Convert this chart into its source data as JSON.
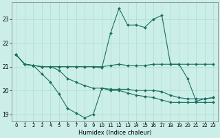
{
  "title": "",
  "xlabel": "Humidex (Indice chaleur)",
  "bg_color": "#cceee8",
  "grid_color": "#aaddcc",
  "line_color": "#1a6e60",
  "xlim": [
    -0.5,
    23.5
  ],
  "ylim": [
    18.7,
    23.7
  ],
  "xticks": [
    0,
    1,
    2,
    3,
    4,
    5,
    6,
    7,
    8,
    9,
    10,
    11,
    12,
    13,
    14,
    15,
    16,
    17,
    18,
    19,
    20,
    21,
    22,
    23
  ],
  "yticks": [
    19,
    20,
    21,
    22,
    23
  ],
  "line1_x": [
    0,
    1,
    2,
    3,
    4,
    5,
    6,
    7,
    8,
    9,
    10,
    11,
    12,
    13,
    14,
    15,
    16,
    17,
    18,
    19,
    20,
    21,
    22,
    23
  ],
  "line1_y": [
    21.5,
    21.1,
    21.05,
    21.0,
    21.0,
    21.0,
    21.0,
    21.0,
    21.0,
    21.0,
    21.0,
    21.05,
    21.1,
    21.05,
    21.05,
    21.05,
    21.1,
    21.1,
    21.1,
    21.1,
    21.1,
    21.1,
    21.1,
    21.1
  ],
  "line2_x": [
    0,
    1,
    2,
    3,
    4,
    5,
    6,
    7,
    8,
    9,
    10,
    11,
    12,
    13,
    14,
    15,
    16,
    17,
    18,
    19,
    20,
    21,
    22,
    23
  ],
  "line2_y": [
    21.5,
    21.1,
    21.05,
    20.7,
    20.35,
    19.85,
    19.25,
    19.05,
    18.85,
    19.0,
    20.1,
    20.05,
    20.05,
    20.05,
    20.0,
    20.0,
    20.0,
    19.95,
    19.8,
    19.7,
    19.65,
    19.65,
    19.65,
    19.7
  ],
  "line3_x": [
    0,
    1,
    2,
    3,
    4,
    5,
    6,
    7,
    8,
    9,
    10,
    11,
    12,
    13,
    14,
    15,
    16,
    17,
    18,
    19,
    20,
    21,
    22,
    23
  ],
  "line3_y": [
    21.5,
    21.1,
    21.05,
    21.0,
    21.0,
    20.85,
    20.5,
    20.35,
    20.2,
    20.1,
    20.1,
    20.0,
    20.0,
    19.9,
    19.8,
    19.75,
    19.7,
    19.6,
    19.5,
    19.5,
    19.5,
    19.5,
    19.5,
    19.5
  ],
  "line4_x": [
    0,
    1,
    2,
    3,
    4,
    5,
    6,
    7,
    8,
    9,
    10,
    11,
    12,
    13,
    14,
    15,
    16,
    17,
    18,
    19,
    20,
    21,
    22,
    23
  ],
  "line4_y": [
    21.5,
    21.1,
    21.05,
    21.0,
    21.0,
    21.0,
    21.0,
    21.0,
    21.0,
    21.0,
    20.95,
    22.4,
    23.45,
    22.75,
    22.75,
    22.65,
    23.0,
    23.15,
    21.1,
    21.1,
    20.5,
    19.55,
    19.65,
    19.7
  ]
}
